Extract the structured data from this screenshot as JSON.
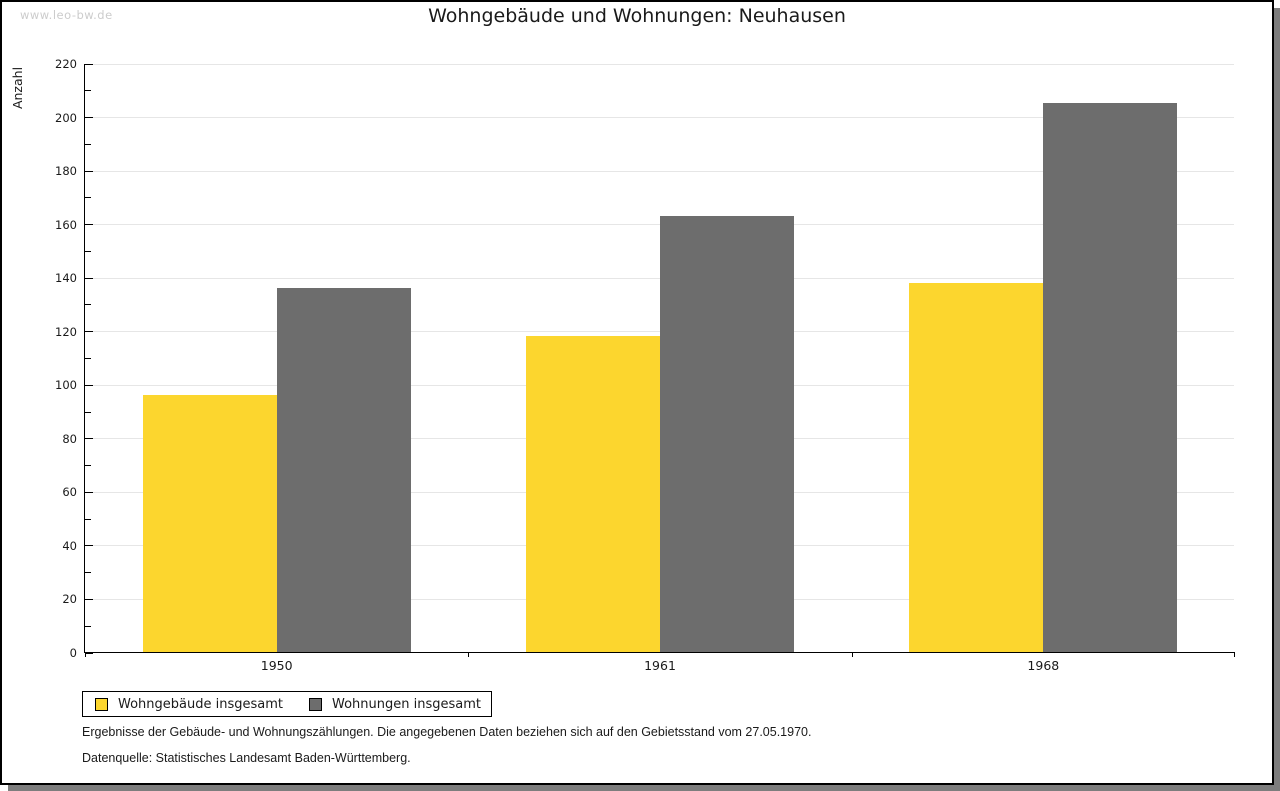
{
  "watermark": "www.leo-bw.de",
  "title": "Wohngebäude und Wohnungen: Neuhausen",
  "chart_data": {
    "type": "bar",
    "title": "Wohngebäude und Wohnungen: Neuhausen",
    "ylabel": "Anzahl",
    "xlabel": "",
    "categories": [
      "1950",
      "1961",
      "1968"
    ],
    "series": [
      {
        "name": "Wohngebäude insgesamt",
        "color": "#fcd62e",
        "values": [
          96,
          118,
          138
        ]
      },
      {
        "name": "Wohnungen insgesamt",
        "color": "#6d6d6d",
        "values": [
          136,
          163,
          205
        ]
      }
    ],
    "ylim": [
      0,
      220
    ],
    "ytick_step": 20,
    "minor_tick_step": 10,
    "grid": "horizontal-major",
    "legend_position": "bottom-left",
    "gridline_color": "#e6e6e6"
  },
  "footer": {
    "line1": "Ergebnisse der Gebäude- und Wohnungszählungen. Die angegebenen Daten beziehen sich auf den Gebietsstand vom 27.05.1970.",
    "line2": "Datenquelle: Statistisches Landesamt Baden-Württemberg."
  }
}
